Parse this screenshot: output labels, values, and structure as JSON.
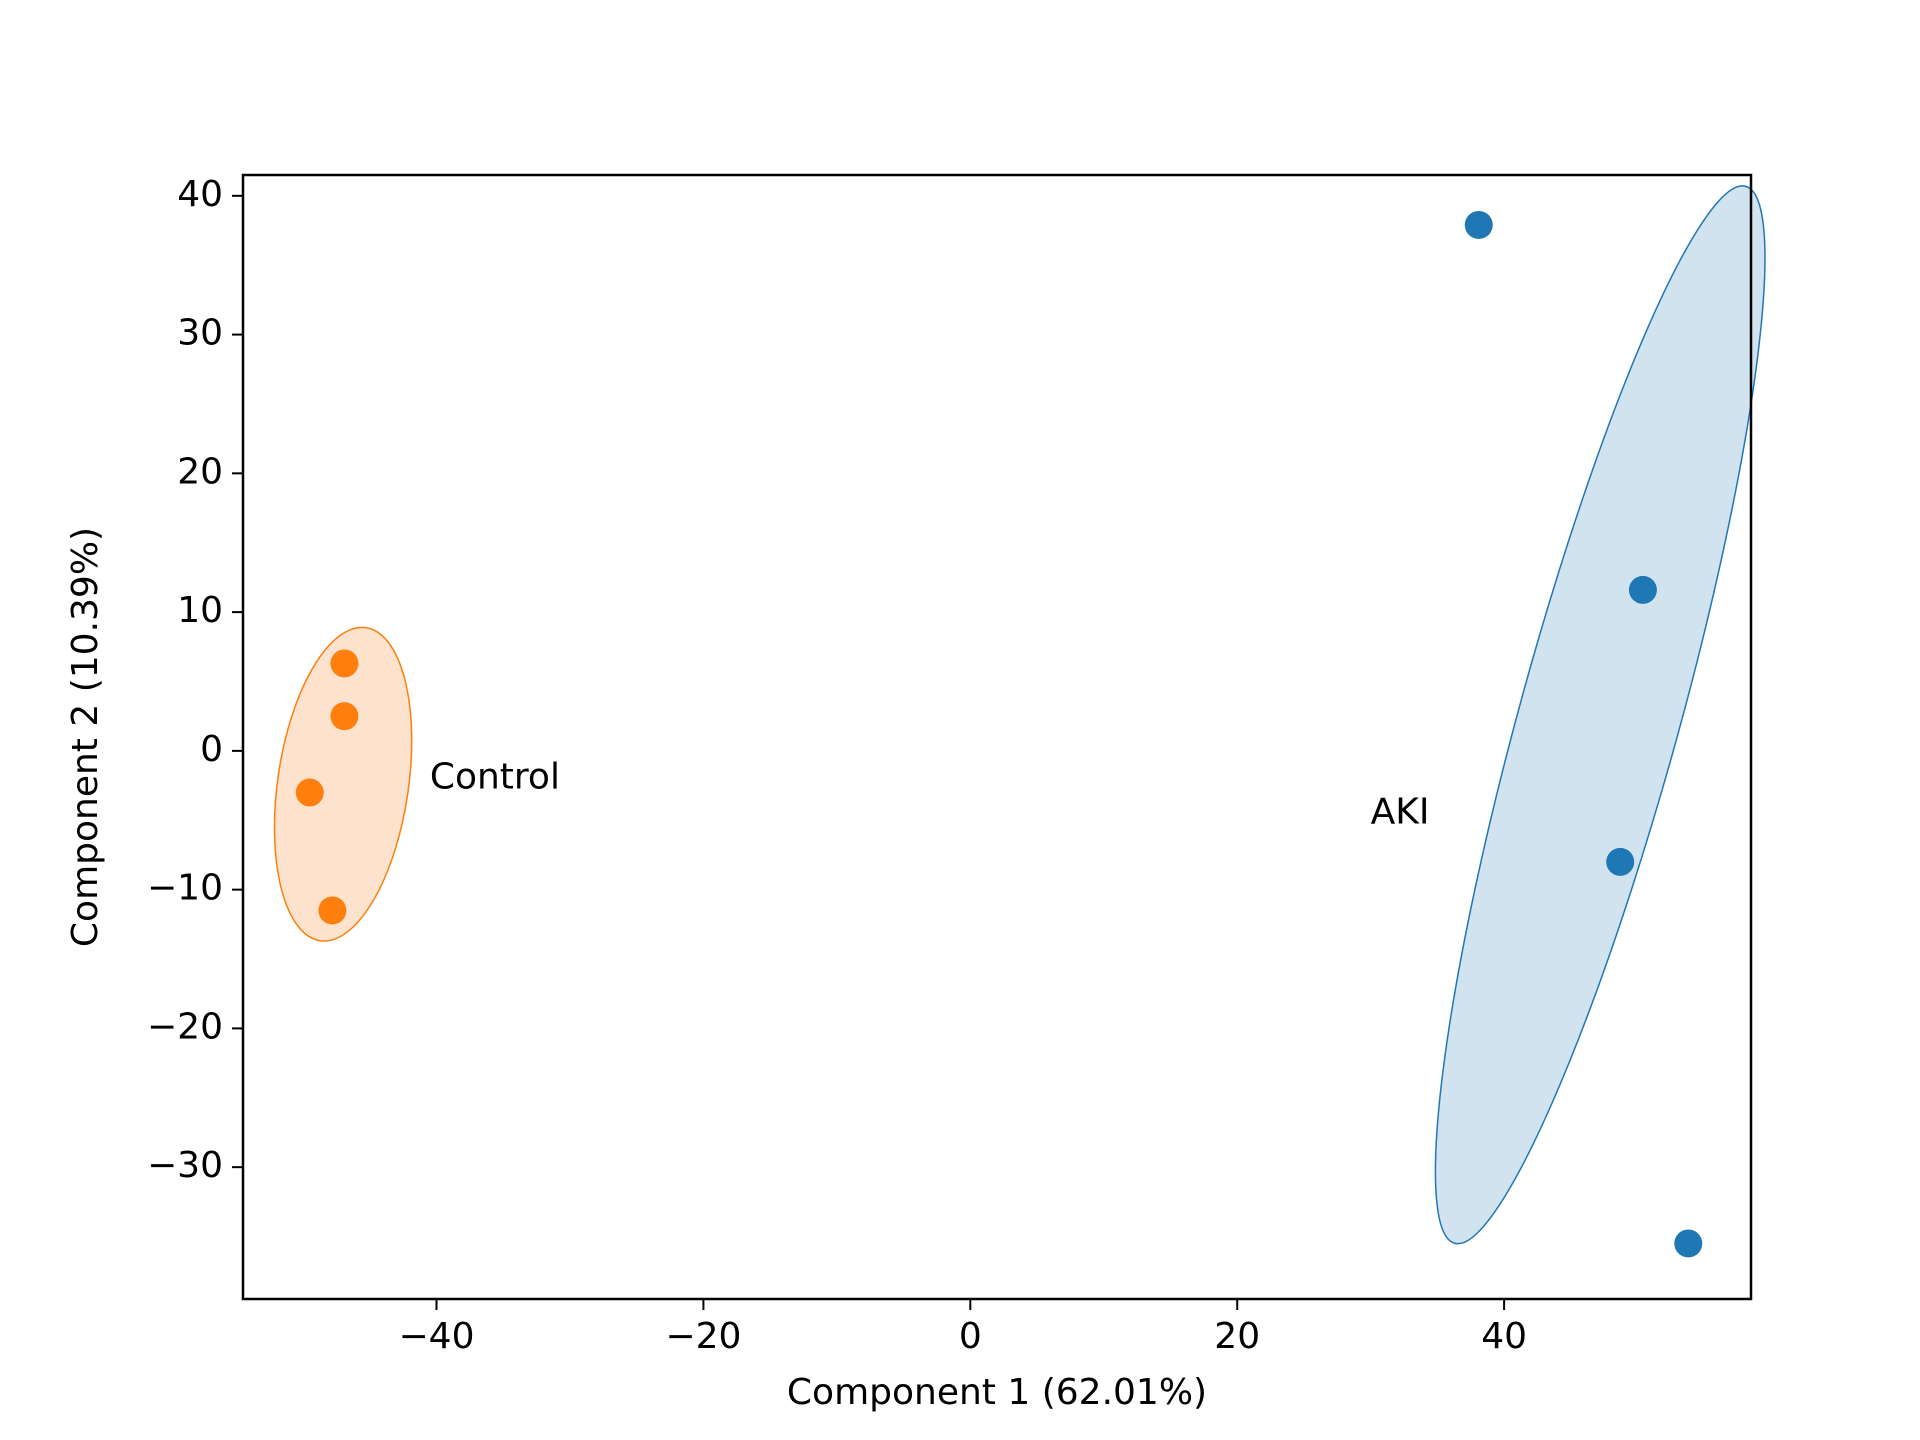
{
  "chart_data": {
    "type": "scatter",
    "title": "",
    "xlabel": "Component 1 (62.01%)",
    "ylabel": "Component 2 (10.39%)",
    "xlim": [
      -54.5,
      58.5
    ],
    "ylim": [
      -39.5,
      41.5
    ],
    "xticks": [
      -40,
      -20,
      0,
      20,
      40
    ],
    "yticks": [
      -30,
      -20,
      -10,
      0,
      10,
      20,
      30,
      40
    ],
    "grid": false,
    "legend": "none",
    "series": [
      {
        "color": "#ff7f0e",
        "fill": "#fde3cd",
        "points": [
          {
            "x": -46.9,
            "y": 6.3
          },
          {
            "x": -46.9,
            "y": 2.5
          },
          {
            "x": -49.5,
            "y": -3.0
          },
          {
            "x": -47.8,
            "y": -11.5
          }
        ],
        "ellipse": {
          "cx": -47.0,
          "cy": -2.4,
          "rx": 4.9,
          "ry": 11.4,
          "angle": 8.3
        },
        "annotation": {
          "text": "Control",
          "x": -40.5,
          "y": -2
        }
      },
      {
        "color": "#1f77b4",
        "fill": "#d2e3f0",
        "points": [
          {
            "x": 38.1,
            "y": 37.9
          },
          {
            "x": 50.4,
            "y": 11.6
          },
          {
            "x": 48.7,
            "y": -8.0
          },
          {
            "x": 53.8,
            "y": -35.5
          }
        ],
        "ellipse": {
          "cx": 47.2,
          "cy": 2.6,
          "rx": 6.0,
          "ry": 39.5,
          "angle": 15.4
        },
        "annotation": {
          "text": "AKI",
          "x": 30,
          "y": -4.5
        }
      }
    ]
  }
}
